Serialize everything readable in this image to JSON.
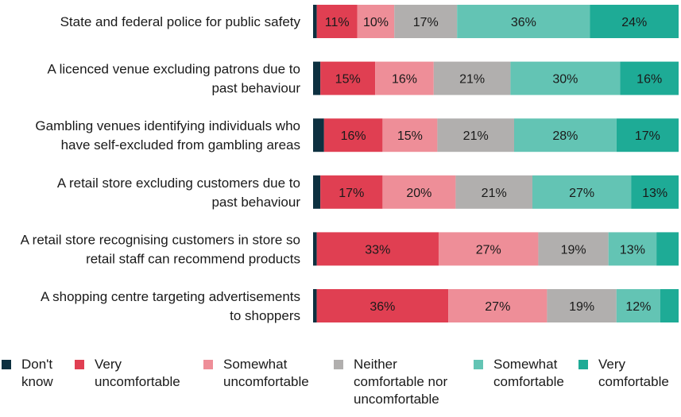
{
  "chart_data": {
    "type": "bar",
    "orientation": "horizontal",
    "stacked": true,
    "categories": [
      "State and federal police for public safety",
      "A licenced venue excluding patrons due to past behaviour",
      "Gambling venues identifying individuals who have self-excluded from gambling areas",
      "A retail store excluding customers due to past behaviour",
      "A retail store recognising customers in store so retail staff can recommend products",
      "A shopping centre targeting advertisements to shoppers"
    ],
    "category_lines": [
      [
        "State and federal police for public safety"
      ],
      [
        "A licenced venue excluding patrons due to",
        "past behaviour"
      ],
      [
        "Gambling venues identifying individuals who",
        "have self-excluded from gambling areas"
      ],
      [
        "A retail store excluding customers due to",
        "past behaviour"
      ],
      [
        "A retail store recognising customers in store so",
        "retail staff can recommend products"
      ],
      [
        "A shopping centre targeting advertisements",
        "to shoppers"
      ]
    ],
    "series": [
      {
        "name": "Don't know",
        "color": "#0d3040",
        "values": [
          1,
          2,
          3,
          2,
          1,
          1
        ],
        "labels": [
          "",
          "",
          "",
          "",
          "",
          ""
        ]
      },
      {
        "name": "Very uncomfortable",
        "color": "#e03f52",
        "values": [
          11,
          15,
          16,
          17,
          33,
          36
        ],
        "labels": [
          "11%",
          "15%",
          "16%",
          "17%",
          "33%",
          "36%"
        ]
      },
      {
        "name": "Somewhat uncomfortable",
        "color": "#ee8e98",
        "values": [
          10,
          16,
          15,
          20,
          27,
          27
        ],
        "labels": [
          "10%",
          "16%",
          "15%",
          "20%",
          "27%",
          "27%"
        ]
      },
      {
        "name": "Neither comfortable nor uncomfortable",
        "color": "#b1afae",
        "values": [
          17,
          21,
          21,
          21,
          19,
          19
        ],
        "labels": [
          "17%",
          "21%",
          "21%",
          "21%",
          "19%",
          "19%"
        ]
      },
      {
        "name": "Somewhat comfortable",
        "color": "#63c4b4",
        "values": [
          36,
          30,
          28,
          27,
          13,
          12
        ],
        "labels": [
          "36%",
          "30%",
          "28%",
          "27%",
          "13%",
          "12%"
        ]
      },
      {
        "name": "Very comfortable",
        "color": "#1eab96",
        "values": [
          24,
          16,
          17,
          13,
          6,
          5
        ],
        "labels": [
          "24%",
          "16%",
          "17%",
          "13%",
          "",
          ""
        ]
      }
    ],
    "xlim": [
      0,
      100
    ],
    "xlabel": "",
    "ylabel": "",
    "grid": false,
    "legend": {
      "placement": "bottom",
      "items": [
        {
          "text": "Don't\nknow"
        },
        {
          "text": "Very\nuncomfortable"
        },
        {
          "text": "Somewhat\nuncomfortable"
        },
        {
          "text": "Neither\ncomfortable nor\nuncomfortable"
        },
        {
          "text": "Somewhat\ncomfortable"
        },
        {
          "text": "Very\ncomfortable"
        }
      ]
    }
  }
}
